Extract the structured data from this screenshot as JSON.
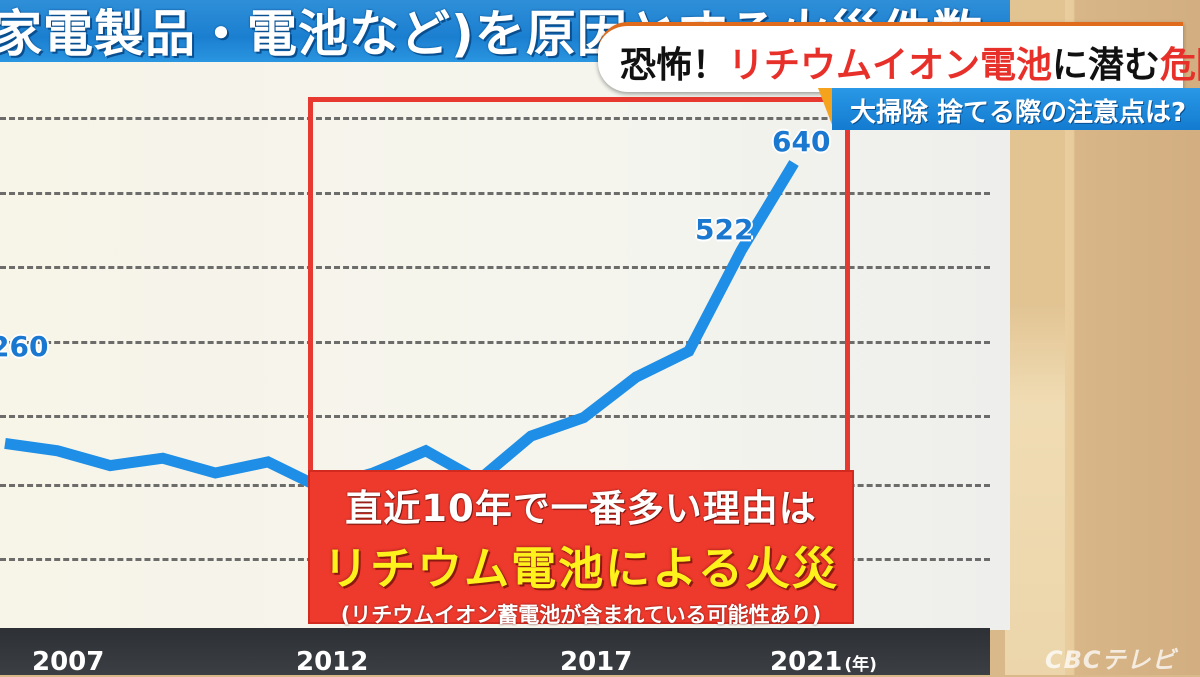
{
  "header": {
    "title_band_text": "家電製品・電池など)を原因とする火災件数"
  },
  "ticker": {
    "main_prefix": "恐怖！",
    "main_red1": "リチウムイオン電池",
    "main_mid": "に潜む",
    "main_red2": "危険",
    "sub": "大掃除 捨てる際の注意点は?"
  },
  "callout": {
    "line1": "直近10年で一番多い理由は",
    "line2": "リチウム電池による火災",
    "line3": "(リチウムイオン蓄電池が含まれている可能性あり)"
  },
  "logo": "CBCテレビ",
  "colors": {
    "line": "#1e8ee6",
    "highlight_red": "#e7392f",
    "callout_yellow": "#fff21c",
    "title_blue": "#1b7fd0"
  },
  "chart_data": {
    "type": "line",
    "title": "家電製品・電池などを原因とする火災件数",
    "xlabel": "(年)",
    "ylabel": "",
    "x": [
      2006,
      2007,
      2008,
      2009,
      2010,
      2011,
      2012,
      2013,
      2014,
      2015,
      2016,
      2017,
      2018,
      2019,
      2020,
      2021
    ],
    "series": [
      {
        "name": "火災件数",
        "values": [
          260,
          250,
          230,
          240,
          220,
          235,
          200,
          220,
          250,
          210,
          270,
          295,
          350,
          385,
          522,
          640
        ]
      }
    ],
    "data_labels": [
      {
        "x": 2006,
        "label": "260"
      },
      {
        "x": 2020,
        "label": "522"
      },
      {
        "x": 2021,
        "label": "640"
      }
    ],
    "x_tick_labels": [
      "2007",
      "2012",
      "2017",
      "2021"
    ],
    "x_unit": "(年)",
    "grid": true,
    "grid_style": "dashed-horizontal",
    "highlight_range": [
      2012,
      2021
    ],
    "ylim": [
      0,
      700
    ]
  }
}
